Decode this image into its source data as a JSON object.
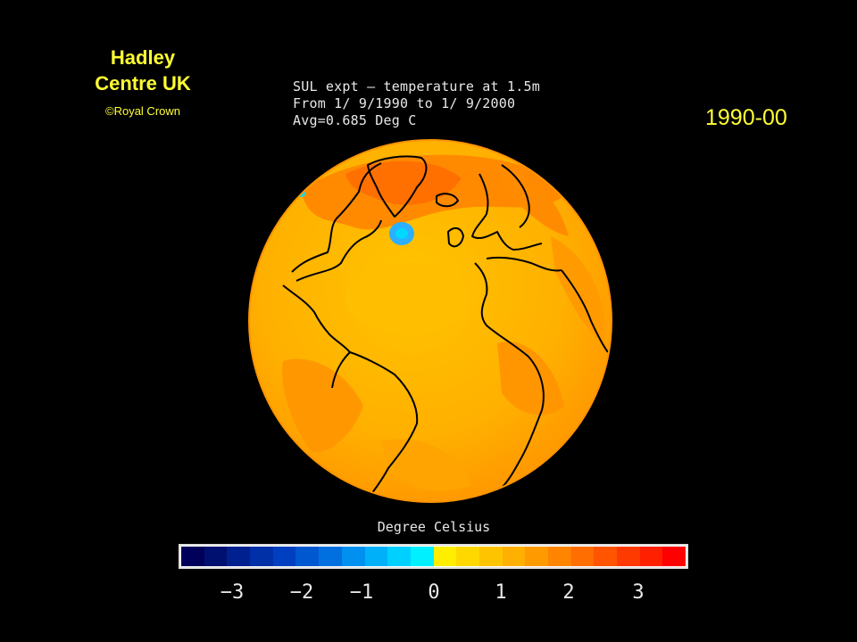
{
  "credit": {
    "title_line1": "Hadley",
    "title_line2": "Centre UK",
    "copyright": "©Royal Crown"
  },
  "period_label": "1990-00",
  "caption": {
    "line1": "SUL expt — temperature at 1.5m",
    "line2": "From 1/ 9/1990 to 1/ 9/2000",
    "line3": "Avg=0.685 Deg C"
  },
  "legend": {
    "unit_label": "Degree Celsius",
    "tick_labels": [
      "−3",
      "−2",
      "−1",
      "0",
      "1",
      "2",
      "3"
    ],
    "colors": [
      "#00005a",
      "#001070",
      "#002090",
      "#0030a8",
      "#0040c0",
      "#0058d0",
      "#0070e0",
      "#0090f0",
      "#00b0f8",
      "#00d0ff",
      "#00f0ff",
      "#ffee00",
      "#ffd800",
      "#ffc400",
      "#ffb000",
      "#ff9a00",
      "#ff8400",
      "#ff6e00",
      "#ff5400",
      "#ff3a00",
      "#ff2000",
      "#ff0000"
    ]
  },
  "globe": {
    "projection": "orthographic, centered on Atlantic",
    "base_color": "#ffb000",
    "colors": {
      "ocean": "#ffb800",
      "land": "#ffa000",
      "warm": "#ff7800",
      "cold_spot": "#22aaff"
    }
  }
}
